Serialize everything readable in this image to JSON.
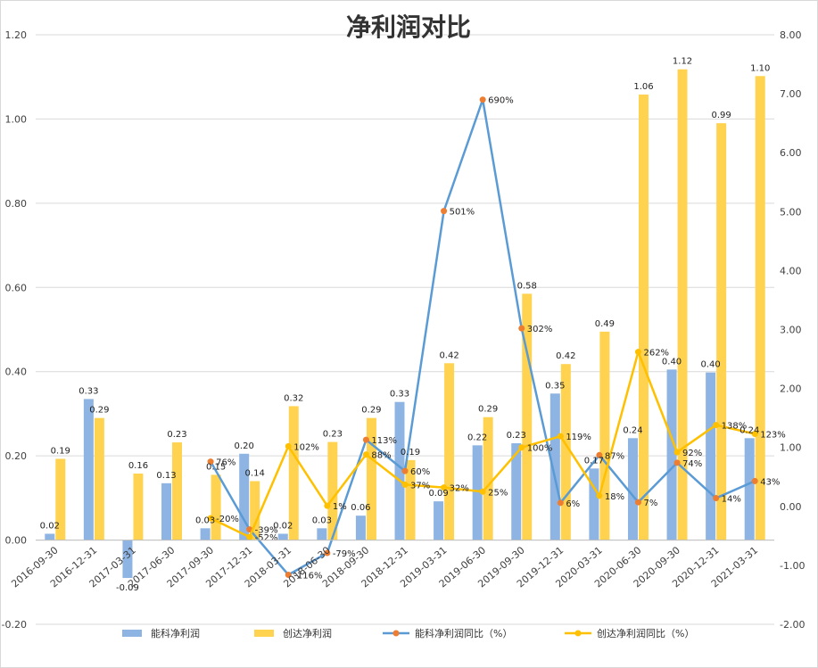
{
  "chart_data": {
    "type": "bar",
    "title": "净利润对比",
    "categories": [
      "2016-09-30",
      "2016-12-31",
      "2017-03-31",
      "2017-06-30",
      "2017-09-30",
      "2017-12-31",
      "2018-03-31",
      "2018-06-30",
      "2018-09-30",
      "2018-12-31",
      "2019-03-31",
      "2019-06-30",
      "2019-09-30",
      "2019-12-31",
      "2020-03-31",
      "2020-06-30",
      "2020-09-30",
      "2020-12-31",
      "2021-03-31"
    ],
    "y_left": {
      "min": -0.2,
      "max": 1.2,
      "ticks": [
        "-0.20",
        "0.00",
        "0.20",
        "0.40",
        "0.60",
        "0.80",
        "1.00",
        "1.20"
      ]
    },
    "y_right": {
      "min": -2.0,
      "max": 8.0,
      "ticks": [
        "-2.00",
        "-1.00",
        "0.00",
        "1.00",
        "2.00",
        "3.00",
        "4.00",
        "5.00",
        "6.00",
        "7.00",
        "8.00"
      ]
    },
    "grid": true,
    "legend_position": "bottom",
    "series": [
      {
        "name": "能科净利润",
        "kind": "bar",
        "axis": "left",
        "color": "#8db4e2",
        "values": [
          0.015,
          0.335,
          -0.09,
          0.135,
          0.028,
          0.205,
          0.015,
          0.028,
          0.058,
          0.328,
          0.092,
          0.225,
          0.23,
          0.348,
          0.17,
          0.242,
          0.405,
          0.398,
          0.242
        ],
        "labels": [
          "0.02",
          "0.33",
          "-0.09",
          "0.13",
          "0.03",
          "0.20",
          "0.02",
          "0.03",
          "0.06",
          "0.33",
          "0.09",
          "0.22",
          "0.23",
          "0.35",
          "0.17",
          "0.24",
          "0.40",
          "0.40",
          "0.24"
        ]
      },
      {
        "name": "创达净利润",
        "kind": "bar",
        "axis": "left",
        "color": "#ffd34f",
        "values": [
          0.193,
          0.29,
          0.158,
          0.232,
          0.155,
          0.14,
          0.318,
          0.233,
          0.29,
          0.19,
          0.42,
          0.292,
          0.585,
          0.418,
          0.495,
          1.058,
          1.118,
          0.99,
          1.102
        ],
        "labels": [
          "0.19",
          "0.29",
          "0.16",
          "0.23",
          "0.15",
          "0.14",
          "0.32",
          "0.23",
          "0.29",
          "0.19",
          "0.42",
          "0.29",
          "0.58",
          "0.42",
          "0.49",
          "1.06",
          "1.12",
          "0.99",
          "1.10"
        ]
      },
      {
        "name": "能科净利润同比（%）",
        "kind": "line",
        "axis": "right",
        "color": "#5b9bd5",
        "marker_color": "#ed7d31",
        "start_index": 4,
        "values": [
          null,
          null,
          null,
          null,
          0.76,
          -0.39,
          -1.16,
          -0.79,
          1.13,
          0.6,
          5.01,
          6.9,
          3.02,
          0.06,
          0.87,
          0.07,
          0.74,
          0.14,
          0.43
        ],
        "labels": [
          null,
          null,
          null,
          null,
          "76%",
          "-39%",
          "-116%",
          "-79%",
          "113%",
          "60%",
          "501%",
          "690%",
          "302%",
          "6%",
          "87%",
          "7%",
          "74%",
          "14%",
          "43%"
        ]
      },
      {
        "name": "创达净利润同比（%）",
        "kind": "line",
        "axis": "right",
        "color": "#ffc000",
        "marker_color": "#ffc000",
        "start_index": 4,
        "values": [
          null,
          null,
          null,
          null,
          -0.2,
          -0.52,
          1.02,
          0.01,
          0.88,
          0.37,
          0.32,
          0.25,
          1.0,
          1.19,
          0.18,
          2.62,
          0.92,
          1.38,
          1.23
        ],
        "labels": [
          null,
          null,
          null,
          null,
          "-20%",
          "-52%",
          "102%",
          "1%",
          "88%",
          "37%",
          "32%",
          "25%",
          "100%",
          "119%",
          "18%",
          "262%",
          "92%",
          "138%",
          "123%"
        ]
      }
    ]
  }
}
